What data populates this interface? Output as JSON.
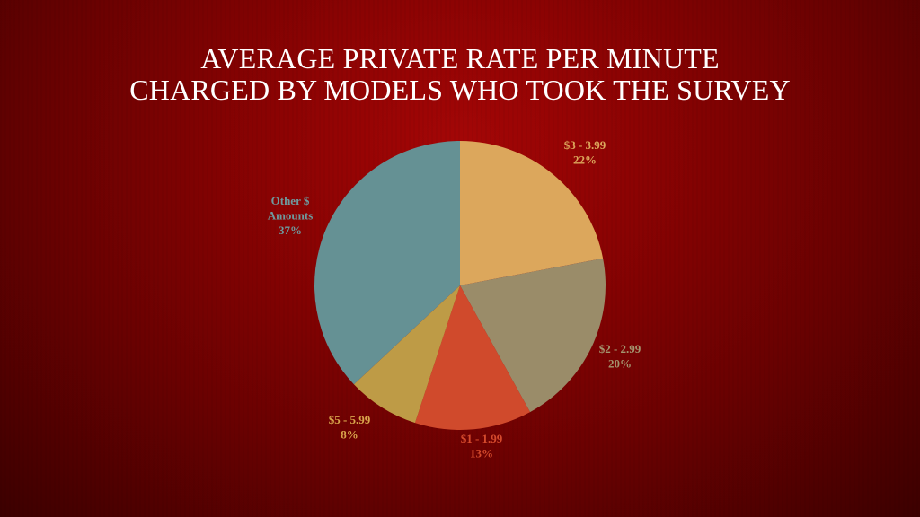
{
  "title_lines": [
    "AVERAGE PRIVATE RATE PER MINUTE",
    "CHARGED BY MODELS WHO TOOK THE SURVEY"
  ],
  "chart_data": {
    "type": "pie",
    "title": "AVERAGE PRIVATE RATE PER MINUTE CHARGED BY MODELS WHO TOOK THE SURVEY",
    "start_angle_deg": 0,
    "direction": "clockwise",
    "slices": [
      {
        "label": "$3 - 3.99",
        "value": 22,
        "value_label": "22%",
        "color": "#DCA75C",
        "label_color": "#DCA75C"
      },
      {
        "label": "$2 - 2.99",
        "value": 20,
        "value_label": "20%",
        "color": "#9A8C69",
        "label_color": "#A4956F"
      },
      {
        "label": "$1 - 1.99",
        "value": 13,
        "value_label": "13%",
        "color": "#D04A2C",
        "label_color": "#D54A2C"
      },
      {
        "label": "$5 - 5.99",
        "value": 8,
        "value_label": "8%",
        "color": "#BE9B46",
        "label_color": "#D9A54C"
      },
      {
        "label": "Other $ Amounts",
        "value": 37,
        "value_label": "37%",
        "color": "#659194",
        "label_color": "#6E9A9E"
      }
    ],
    "legend": "none",
    "data_labels": "outside, category and percentage"
  }
}
